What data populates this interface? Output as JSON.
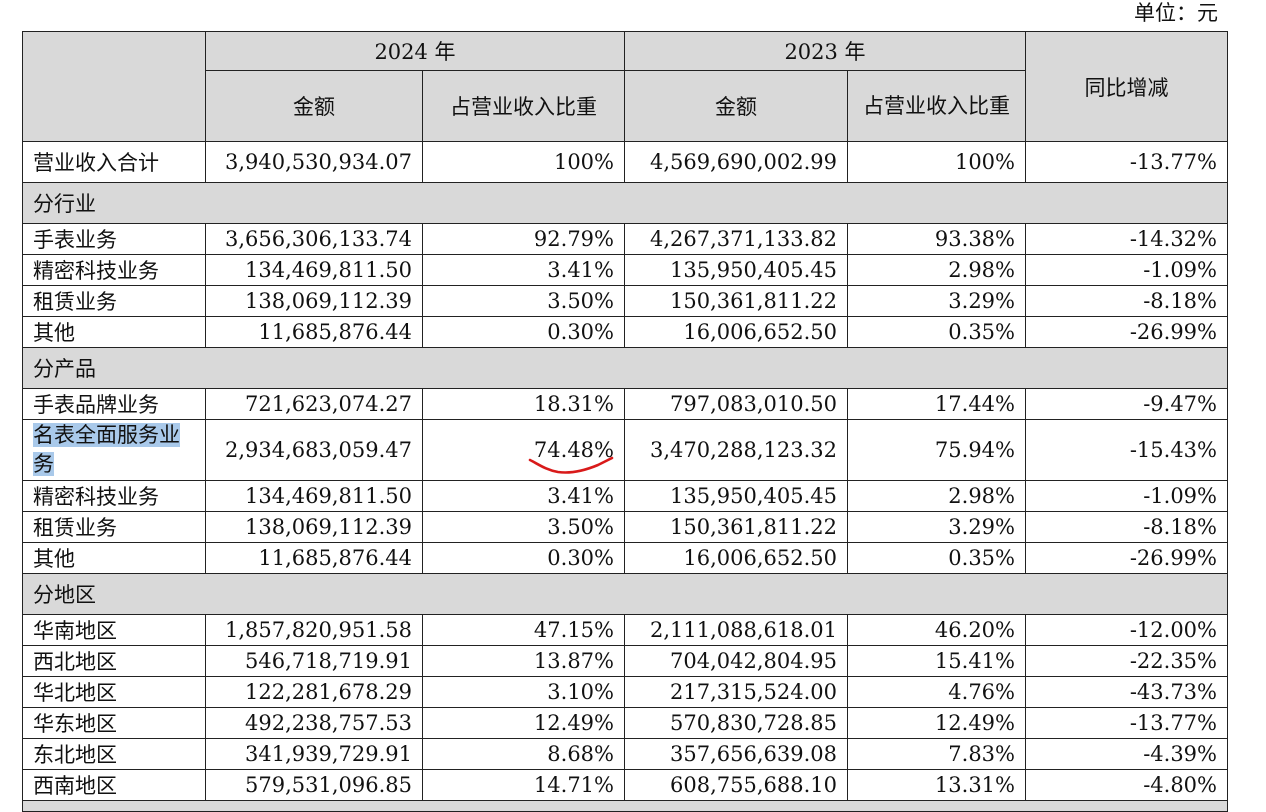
{
  "unit_label": "单位：元",
  "headers": {
    "year_2024": "2024 年",
    "year_2023": "2023 年",
    "amount": "金额",
    "ratio": "占营业收入比重",
    "ratio_2023": "占营业收入比重",
    "yoy": "同比增减"
  },
  "total": {
    "label": "营业收入合计",
    "amt_2024": "3,940,530,934.07",
    "pct_2024": "100%",
    "amt_2023": "4,569,690,002.99",
    "pct_2023": "100%",
    "yoy": "-13.77%"
  },
  "sections": [
    {
      "title": "分行业",
      "rows": [
        {
          "label": "手表业务",
          "amt_2024": "3,656,306,133.74",
          "pct_2024": "92.79%",
          "amt_2023": "4,267,371,133.82",
          "pct_2023": "93.38%",
          "yoy": "-14.32%"
        },
        {
          "label": "精密科技业务",
          "amt_2024": "134,469,811.50",
          "pct_2024": "3.41%",
          "amt_2023": "135,950,405.45",
          "pct_2023": "2.98%",
          "yoy": "-1.09%"
        },
        {
          "label": "租赁业务",
          "amt_2024": "138,069,112.39",
          "pct_2024": "3.50%",
          "amt_2023": "150,361,811.22",
          "pct_2023": "3.29%",
          "yoy": "-8.18%"
        },
        {
          "label": "其他",
          "amt_2024": "11,685,876.44",
          "pct_2024": "0.30%",
          "amt_2023": "16,006,652.50",
          "pct_2023": "0.35%",
          "yoy": "-26.99%"
        }
      ]
    },
    {
      "title": "分产品",
      "rows": [
        {
          "label": "手表品牌业务",
          "amt_2024": "721,623,074.27",
          "pct_2024": "18.31%",
          "amt_2023": "797,083,010.50",
          "pct_2023": "17.44%",
          "yoy": "-9.47%"
        },
        {
          "label": "名表全面服务业务",
          "amt_2024": "2,934,683,059.47",
          "pct_2024": "74.48%",
          "amt_2023": "3,470,288,123.32",
          "pct_2023": "75.94%",
          "yoy": "-15.43%",
          "highlight": true
        },
        {
          "label": "精密科技业务",
          "amt_2024": "134,469,811.50",
          "pct_2024": "3.41%",
          "amt_2023": "135,950,405.45",
          "pct_2023": "2.98%",
          "yoy": "-1.09%"
        },
        {
          "label": "租赁业务",
          "amt_2024": "138,069,112.39",
          "pct_2024": "3.50%",
          "amt_2023": "150,361,811.22",
          "pct_2023": "3.29%",
          "yoy": "-8.18%"
        },
        {
          "label": "其他",
          "amt_2024": "11,685,876.44",
          "pct_2024": "0.30%",
          "amt_2023": "16,006,652.50",
          "pct_2023": "0.35%",
          "yoy": "-26.99%"
        }
      ]
    },
    {
      "title": "分地区",
      "rows": [
        {
          "label": "华南地区",
          "amt_2024": "1,857,820,951.58",
          "pct_2024": "47.15%",
          "amt_2023": "2,111,088,618.01",
          "pct_2023": "46.20%",
          "yoy": "-12.00%"
        },
        {
          "label": "西北地区",
          "amt_2024": "546,718,719.91",
          "pct_2024": "13.87%",
          "amt_2023": "704,042,804.95",
          "pct_2023": "15.41%",
          "yoy": "-22.35%"
        },
        {
          "label": "华北地区",
          "amt_2024": "122,281,678.29",
          "pct_2024": "3.10%",
          "amt_2023": "217,315,524.00",
          "pct_2023": "4.76%",
          "yoy": "-43.73%"
        },
        {
          "label": "华东地区",
          "amt_2024": "492,238,757.53",
          "pct_2024": "12.49%",
          "amt_2023": "570,830,728.85",
          "pct_2023": "12.49%",
          "yoy": "-13.77%"
        },
        {
          "label": "东北地区",
          "amt_2024": "341,939,729.91",
          "pct_2024": "8.68%",
          "amt_2023": "357,656,639.08",
          "pct_2023": "7.83%",
          "yoy": "-4.39%"
        },
        {
          "label": "西南地区",
          "amt_2024": "579,531,096.85",
          "pct_2024": "14.71%",
          "amt_2023": "608,755,688.10",
          "pct_2023": "13.31%",
          "yoy": "-4.80%"
        }
      ]
    }
  ],
  "annotation_color": "#d91a1a",
  "highlight_color": "#a9c9ea"
}
